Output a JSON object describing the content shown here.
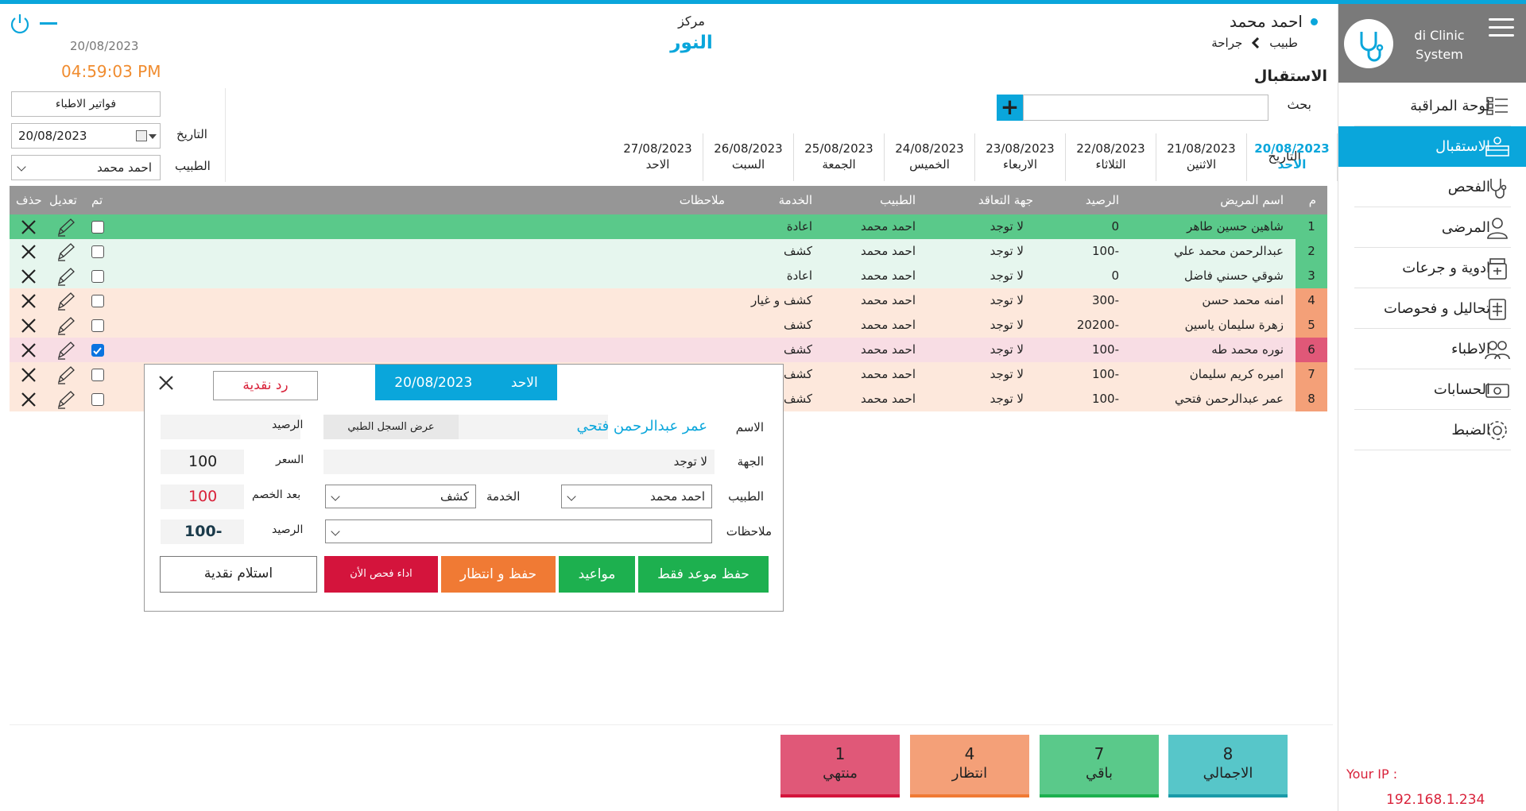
{
  "sidebar": {
    "brand": "di Clinic System",
    "items": [
      {
        "label": "لوحة المراقبة",
        "icon": "dashboard-icon"
      },
      {
        "label": "الاستقبال",
        "icon": "reception-icon"
      },
      {
        "label": "الفحص",
        "icon": "stethoscope-icon"
      },
      {
        "label": "المرضى",
        "icon": "patient-icon"
      },
      {
        "label": "ادوية و جرعات",
        "icon": "medicine-icon"
      },
      {
        "label": "تحاليل و فحوصات",
        "icon": "lab-icon"
      },
      {
        "label": "الاطباء",
        "icon": "doctors-icon"
      },
      {
        "label": "الحسابات",
        "icon": "accounts-icon"
      },
      {
        "label": "الضبط",
        "icon": "settings-icon"
      }
    ],
    "ip_label": "Your IP :",
    "ip_value": "192.168.1.234"
  },
  "header": {
    "user": "احمد محمد",
    "role": "طبيب",
    "dept": "جراحة",
    "center_label": "مركز",
    "center_name": "النور",
    "date": "20/08/2023",
    "time": "04:59:03 PM",
    "section": "الاستقبال",
    "search_label": "بحث"
  },
  "date_tabs": {
    "label": "التاريخ",
    "tabs": [
      {
        "date": "20/08/2023",
        "day": "الاحد"
      },
      {
        "date": "21/08/2023",
        "day": "الاثنين"
      },
      {
        "date": "22/08/2023",
        "day": "الثلاثاء"
      },
      {
        "date": "23/08/2023",
        "day": "الاربعاء"
      },
      {
        "date": "24/08/2023",
        "day": "الخميس"
      },
      {
        "date": "25/08/2023",
        "day": "الجمعة"
      },
      {
        "date": "26/08/2023",
        "day": "السبت"
      },
      {
        "date": "27/08/2023",
        "day": "الاحد"
      }
    ]
  },
  "filters": {
    "invoices_btn": "فواتير الاطباء",
    "date_label": "التاريخ",
    "date_value": "20/08/2023",
    "doctor_label": "الطبيب",
    "doctor_value": "احمد محمد"
  },
  "table": {
    "headers": {
      "num": "م",
      "name": "اسم المريض",
      "balance": "الرصيد",
      "contract": "جهة التعاقد",
      "doctor": "الطبيب",
      "service": "الخدمة",
      "notes": "ملاحظات",
      "done": "تم",
      "edit": "تعديل",
      "delete": "حذف"
    },
    "rows": [
      {
        "num": "1",
        "name": "شاهين حسين طاهر",
        "balance": "0",
        "contract": "لا توجد",
        "doctor": "احمد محمد",
        "service": "اعادة",
        "done": false,
        "status": "finished"
      },
      {
        "num": "2",
        "name": "عبدالرحمن محمد علي",
        "balance": "100-",
        "contract": "لا توجد",
        "doctor": "احمد محمد",
        "service": "كشف",
        "done": false,
        "status": "remaining"
      },
      {
        "num": "3",
        "name": "شوقي حسني فاضل",
        "balance": "0",
        "contract": "لا توجد",
        "doctor": "احمد محمد",
        "service": "اعادة",
        "done": false,
        "status": "remaining"
      },
      {
        "num": "4",
        "name": "امنه محمد حسن",
        "balance": "300-",
        "contract": "لا توجد",
        "doctor": "احمد محمد",
        "service": "كشف و غيار",
        "done": false,
        "status": "waiting"
      },
      {
        "num": "5",
        "name": "زهرة سليمان ياسين",
        "balance": "20200-",
        "contract": "لا توجد",
        "doctor": "احمد محمد",
        "service": "كشف",
        "done": false,
        "status": "waiting"
      },
      {
        "num": "6",
        "name": "نوره محمد طه",
        "balance": "100-",
        "contract": "لا توجد",
        "doctor": "احمد محمد",
        "service": "كشف",
        "done": true,
        "status": "ended"
      },
      {
        "num": "7",
        "name": "اميره كريم سليمان",
        "balance": "100-",
        "contract": "لا توجد",
        "doctor": "احمد محمد",
        "service": "كشف",
        "done": false,
        "status": "waiting"
      },
      {
        "num": "8",
        "name": "عمر عبدالرحمن فتحي",
        "balance": "100-",
        "contract": "لا توجد",
        "doctor": "احمد محمد",
        "service": "كشف",
        "done": false,
        "status": "waiting"
      }
    ]
  },
  "dialog": {
    "refund_btn": "رد نقدية",
    "day": "الاحد",
    "date": "20/08/2023",
    "name_label": "الاسم",
    "name_value": "عمر عبدالرحمن فتحي",
    "record_btn": "عرض السجل الطبي",
    "balance_label": "الرصيد",
    "party_label": "الجهة",
    "party_value": "لا توجد",
    "price_label": "السعر",
    "price_value": "100",
    "doctor_label": "الطبيب",
    "doctor_value": "احمد محمد",
    "service_label": "الخدمة",
    "service_value": "كشف",
    "after_discount_label": "بعد الخصم",
    "after_discount_value": "100",
    "notes_label": "ملاحظات",
    "balance2_label": "الرصيد",
    "balance2_value": "100-",
    "actions": {
      "save_only": "حفظ موعد فقط",
      "appointments": "مواعيد",
      "save_wait": "حفظ و انتظار",
      "exam_now": "اداء فحص الأن",
      "receive_cash": "استلام نقدية"
    }
  },
  "summary": [
    {
      "count": "8",
      "label": "الاجمالي"
    },
    {
      "count": "7",
      "label": "باقي"
    },
    {
      "count": "4",
      "label": "انتظار"
    },
    {
      "count": "1",
      "label": "منتهي"
    }
  ],
  "colors": {
    "accent": "#0aa6db",
    "finished": "#5ac98a",
    "remaining_bg": "#e6f6ee",
    "waiting_bg": "#fde8dc",
    "ended_bg": "#f8dde4",
    "waiting_num": "#f4a078",
    "ended_num": "#e05878",
    "total_card": "#57c6c9",
    "remaining_card": "#5ac98a",
    "waiting_card": "#f4a078",
    "ended_card": "#e05878"
  }
}
